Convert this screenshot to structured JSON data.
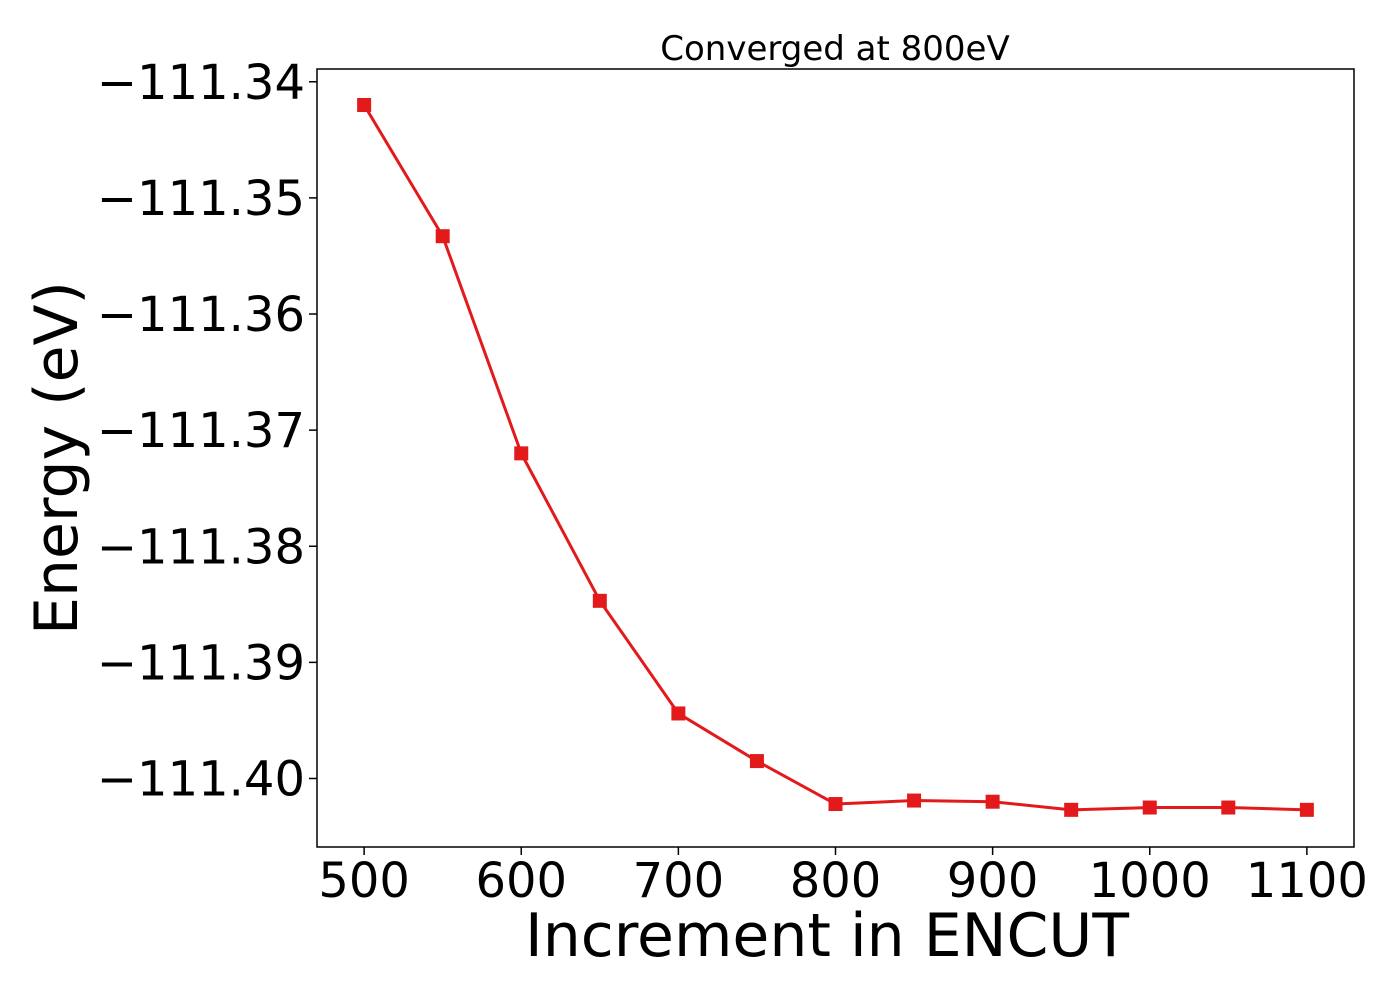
{
  "chart_data": {
    "type": "line",
    "title": "Converged at 800eV",
    "xlabel": "Increment in ENCUT",
    "ylabel": "Energy (eV)",
    "x": [
      500,
      550,
      600,
      650,
      700,
      750,
      800,
      850,
      900,
      950,
      1000,
      1050,
      1100
    ],
    "series": [
      {
        "values": [
          -111.342,
          -111.3533,
          -111.372,
          -111.3847,
          -111.3944,
          -111.3985,
          -111.4022,
          -111.4019,
          -111.402,
          -111.4027,
          -111.4025,
          -111.4025,
          -111.4027
        ]
      }
    ],
    "xticks": [
      500,
      600,
      700,
      800,
      900,
      1000,
      1100
    ],
    "xtick_labels": [
      "500",
      "600",
      "700",
      "800",
      "900",
      "1000",
      "1100"
    ],
    "yticks": [
      -111.34,
      -111.35,
      -111.36,
      -111.37,
      -111.38,
      -111.39,
      -111.4
    ],
    "ytick_labels": [
      "−111.34",
      "−111.35",
      "−111.36",
      "−111.37",
      "−111.38",
      "−111.39",
      "−111.40"
    ],
    "xlim": [
      470,
      1130
    ],
    "ylim": [
      -111.4059,
      -111.3389
    ],
    "grid": false,
    "marker": "square",
    "colors": {
      "series": "#e31a1c",
      "axes": "#000000",
      "background": "#ffffff"
    }
  }
}
